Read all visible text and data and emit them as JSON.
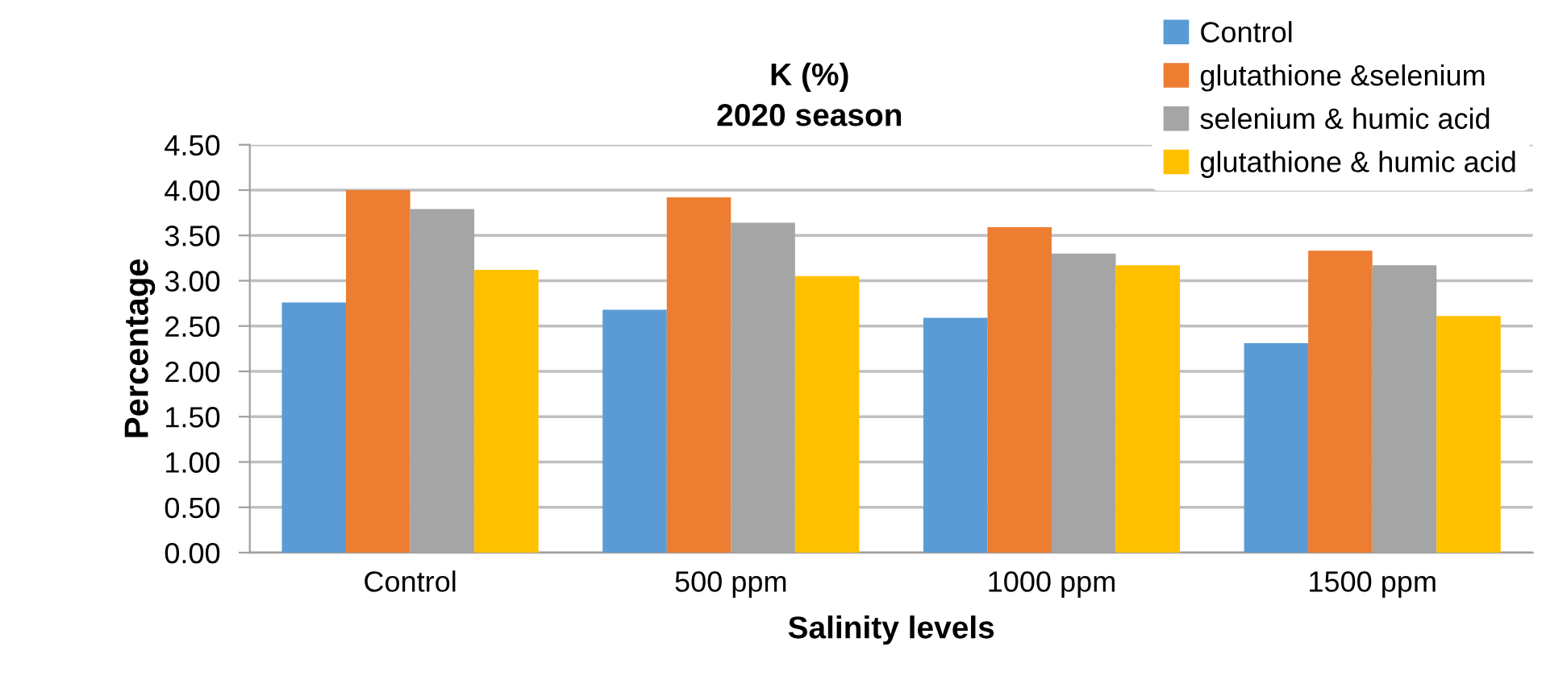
{
  "chart_data": {
    "type": "bar",
    "title": "K (%)\n2020 season",
    "xlabel": "Salinity levels",
    "ylabel": "Percentage",
    "categories": [
      "Control",
      "500 ppm",
      "1000 ppm",
      "1500 ppm"
    ],
    "series": [
      {
        "name": "Control",
        "color": "#5b9bd5",
        "values": [
          2.76,
          2.68,
          2.59,
          2.31
        ]
      },
      {
        "name": "glutathione &selenium",
        "color": "#ed7d31",
        "values": [
          4.0,
          3.92,
          3.59,
          3.33
        ]
      },
      {
        "name": "selenium & humic acid",
        "color": "#a5a5a5",
        "values": [
          3.79,
          3.64,
          3.3,
          3.17
        ]
      },
      {
        "name": "glutathione & humic acid",
        "color": "#ffc000",
        "values": [
          3.12,
          3.05,
          3.17,
          2.61
        ]
      }
    ],
    "ylim": [
      0,
      4.5
    ],
    "yticks": [
      {
        "value": 0,
        "label": "0.00"
      },
      {
        "value": 0.5,
        "label": "0.50"
      },
      {
        "value": 1,
        "label": "1.00"
      },
      {
        "value": 1.5,
        "label": "1.50"
      },
      {
        "value": 2,
        "label": "2.00"
      },
      {
        "value": 2.5,
        "label": "2.50"
      },
      {
        "value": 3,
        "label": "3.00"
      },
      {
        "value": 3.5,
        "label": "3.50"
      },
      {
        "value": 4,
        "label": "4.00"
      },
      {
        "value": 4.5,
        "label": "4.50"
      }
    ],
    "grid": "y",
    "legend": "top right"
  }
}
